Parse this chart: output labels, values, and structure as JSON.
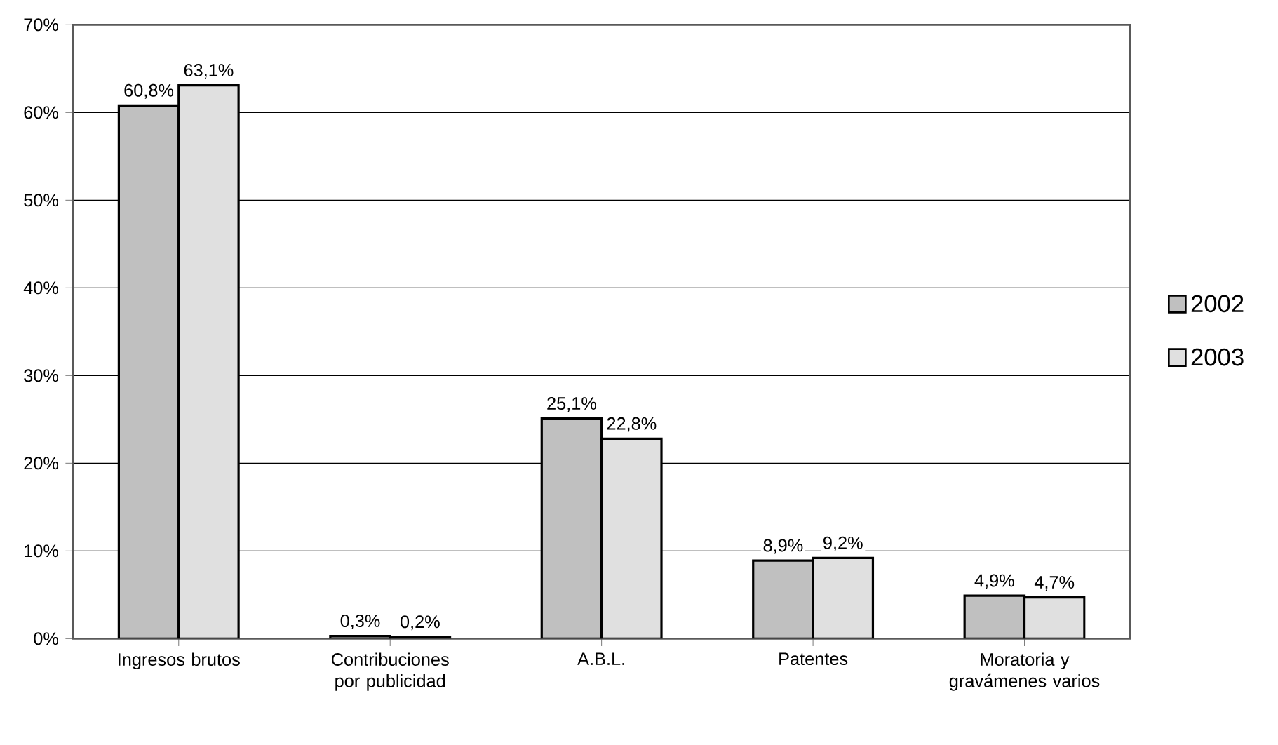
{
  "chart_data": {
    "type": "bar",
    "categories": [
      "Ingresos brutos",
      "Contribuciones por publicidad",
      "A.B.L.",
      "Patentes",
      "Moratoria y gravámenes varios"
    ],
    "series": [
      {
        "name": "2002",
        "color": "#c0c0c0",
        "values": [
          60.8,
          0.3,
          25.1,
          8.9,
          4.9
        ],
        "value_labels": [
          "60,8%",
          "0,3%",
          "25,1%",
          "8,9%",
          "4,9%"
        ]
      },
      {
        "name": "2003",
        "color": "#e0e0e0",
        "values": [
          63.1,
          0.2,
          22.8,
          9.2,
          4.7
        ],
        "value_labels": [
          "63,1%",
          "0,2%",
          "22,8%",
          "9,2%",
          "4,7%"
        ]
      }
    ],
    "ylim": [
      0,
      70
    ],
    "yticks": [
      {
        "value": 0,
        "label": "0%"
      },
      {
        "value": 10,
        "label": "10%"
      },
      {
        "value": 20,
        "label": "20%"
      },
      {
        "value": 30,
        "label": "30%"
      },
      {
        "value": 40,
        "label": "40%"
      },
      {
        "value": 50,
        "label": "50%"
      },
      {
        "value": 60,
        "label": "60%"
      },
      {
        "value": 70,
        "label": "70%"
      }
    ],
    "grid": "y",
    "legend": "right"
  }
}
